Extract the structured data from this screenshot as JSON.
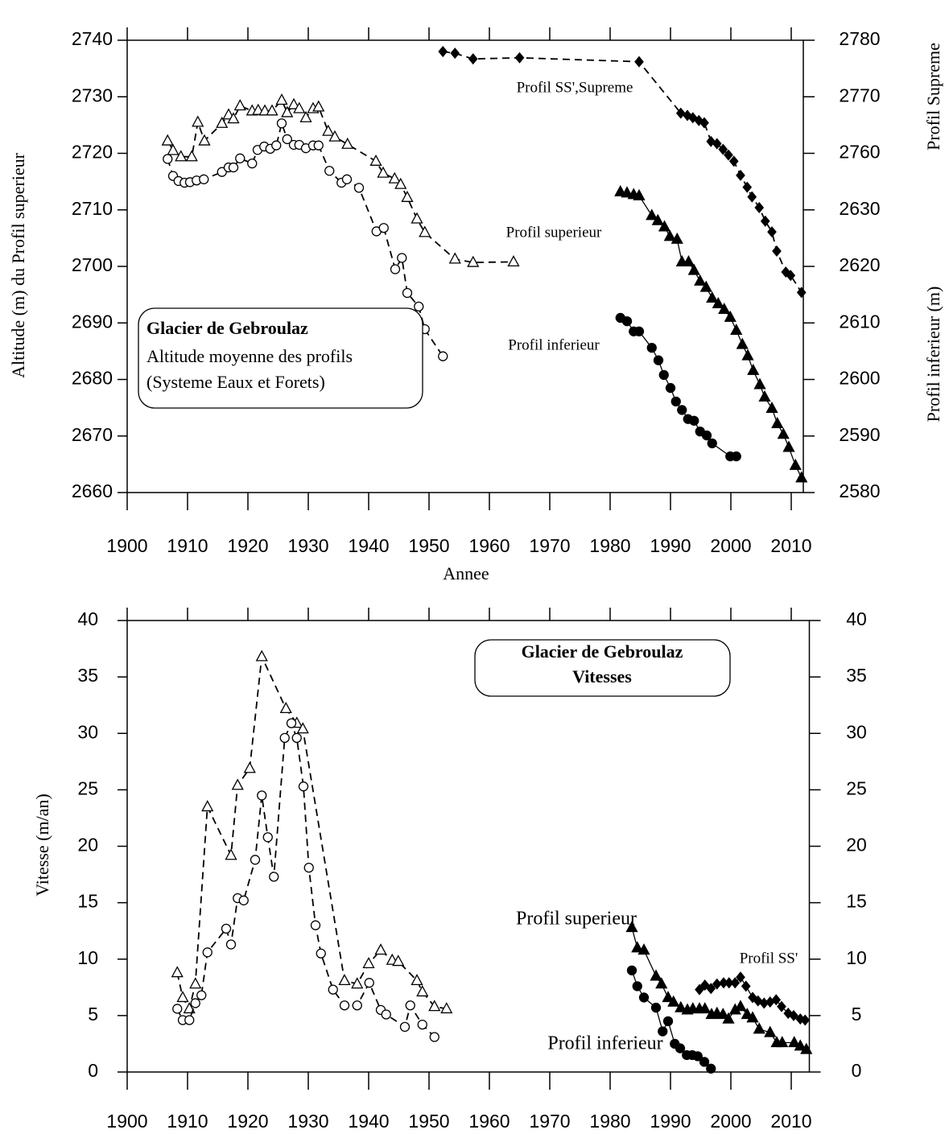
{
  "chart_data": [
    {
      "type": "line",
      "xlabel": "Annee",
      "ylabel": "Altitude (m) du Profil superieur",
      "y2label": "Profil Supreme",
      "y3label": "Profil inferieur (m)",
      "xlim": [
        1900,
        2012
      ],
      "xticks": [
        1900,
        1910,
        1920,
        1930,
        1940,
        1950,
        1960,
        1970,
        1980,
        1990,
        2000,
        2010
      ],
      "ylim": [
        2660,
        2740
      ],
      "yticks": [
        2660,
        2670,
        2680,
        2690,
        2700,
        2710,
        2720,
        2730,
        2740
      ],
      "y2lim": [
        2700,
        2780
      ],
      "y2ticks": [
        2760,
        2770,
        2780
      ],
      "y3lim": [
        2580,
        2660
      ],
      "y3ticks": [
        2580,
        2590,
        2600,
        2610,
        2620,
        2630
      ],
      "box": {
        "title": "Glacier de Gebroulaz",
        "lines": [
          "Altitude moyenne des profils",
          "(Systeme Eaux et Forets)"
        ]
      },
      "annotations": [
        "Profil SS',Supreme",
        "Profil superieur",
        "Profil inferieur"
      ],
      "series": [
        {
          "color": "#000000",
          "marker": "triangle-open",
          "dash": true,
          "x": [
            1906.7,
            1907.6,
            1908.9,
            1910.7,
            1911.7,
            1912.8,
            1915.7,
            1916.8,
            1917.6,
            1918.7,
            1920.7,
            1921.7,
            1922.8,
            1924,
            1925.6,
            1926.5,
            1927.6,
            1928.5,
            1929.6,
            1930.8,
            1931.7,
            1933.3,
            1934.4,
            1936.5,
            1941.2,
            1942.4,
            1944.3,
            1945.3,
            1946.4,
            1948,
            1949.3,
            1954.3,
            1957.3,
            1964
          ],
          "values": [
            2722.2,
            2720.5,
            2719.4,
            2719.4,
            2725.5,
            2722.2,
            2725.3,
            2726.8,
            2726.1,
            2728.4,
            2727.5,
            2727.6,
            2727.5,
            2727.5,
            2729.4,
            2727.2,
            2728.6,
            2727.9,
            2726.3,
            2727.9,
            2728.2,
            2723.9,
            2722.9,
            2721.6,
            2718.6,
            2716.5,
            2715.5,
            2714.5,
            2712.2,
            2708.4,
            2706,
            2701.3,
            2700.7,
            2700.8
          ]
        },
        {
          "color": "#000000",
          "marker": "circle-open",
          "dash": true,
          "x": [
            1906.7,
            1907.6,
            1908.5,
            1909.5,
            1910.4,
            1911.5,
            1912.7,
            1915.7,
            1916.8,
            1917.6,
            1918.7,
            1920.7,
            1921.6,
            1922.7,
            1923.7,
            1924.7,
            1925.6,
            1926.5,
            1927.6,
            1928.5,
            1929.6,
            1930.8,
            1931.7,
            1933.5,
            1935.5,
            1936.4,
            1938.4,
            1941.3,
            1942.5,
            1944.4,
            1945.5,
            1946.4,
            1948.3,
            1949.3,
            1952.3
          ],
          "values": [
            2719,
            2716,
            2715.1,
            2714.8,
            2714.9,
            2715.2,
            2715.4,
            2716.7,
            2717.5,
            2717.5,
            2719.1,
            2718.2,
            2720.6,
            2721.2,
            2720.8,
            2721.4,
            2725.3,
            2722.5,
            2721.5,
            2721.5,
            2720.9,
            2721.4,
            2721.4,
            2716.9,
            2714.8,
            2715.4,
            2713.9,
            2706.2,
            2706.8,
            2699.5,
            2701.5,
            2695.3,
            2692.9,
            2688.9,
            2684.1
          ]
        },
        {
          "color": "#000000",
          "marker": "diamond",
          "dash": true,
          "axis": "y2",
          "x": [
            1952.3,
            1954.3,
            1957.3,
            1965,
            1984.8,
            1991.7,
            1992.8,
            1993.7,
            1994.7,
            1995.6,
            1996.7,
            1997.7,
            1998.7,
            1999.6,
            2000.5,
            2001.6,
            2002.7,
            2003.5,
            2004.7,
            2005.7,
            2006.8,
            2007.6,
            2009.1,
            2009.9,
            2011.7
          ],
          "values": [
            2778,
            2777.7,
            2776.7,
            2776.9,
            2776.2,
            2767.1,
            2766.7,
            2766.3,
            2765.8,
            2765.4,
            2762.1,
            2761.7,
            2760.7,
            2759.7,
            2758.6,
            2756.1,
            2754,
            2752.3,
            2750.4,
            2748,
            2746.1,
            2742.7,
            2739,
            2738.4,
            2735.4
          ]
        },
        {
          "color": "#000000",
          "marker": "triangle",
          "dash": false,
          "x": [
            1981.7,
            1982.8,
            1983.9,
            1984.8,
            1986.9,
            1987.9,
            1989,
            1989.9,
            1991.1,
            1991.9,
            1993,
            1993.9,
            1994.9,
            1995.9,
            1996.9,
            1997.9,
            1998.9,
            1999.9,
            2000.9,
            2001.9,
            2002.8,
            2003.7,
            2004.8,
            2005.6,
            2006.8,
            2007.7,
            2008.7,
            2009.6,
            2010.7,
            2011.7
          ],
          "values": [
            2713.2,
            2713,
            2712.7,
            2712.5,
            2709,
            2708.1,
            2707,
            2705.3,
            2704.8,
            2700.8,
            2700.8,
            2699.3,
            2697.4,
            2696.3,
            2694.4,
            2693.4,
            2692.4,
            2691,
            2688.7,
            2686.2,
            2684.2,
            2681.6,
            2679.1,
            2676.9,
            2674.9,
            2672.2,
            2670.3,
            2668,
            2664.8,
            2662.6
          ]
        },
        {
          "color": "#000000",
          "marker": "circle",
          "dash": false,
          "axis": "y3",
          "x": [
            1981.7,
            1982.8,
            1983.9,
            1984.8,
            1986.9,
            1988,
            1988.9,
            1990,
            1990.9,
            1991.9,
            1992.9,
            1993.9,
            1994.9,
            1996,
            1996.9,
            1999.9,
            2000.9
          ],
          "values": [
            2610.9,
            2610.3,
            2608.5,
            2608.5,
            2605.6,
            2603.4,
            2600.8,
            2598.5,
            2596.1,
            2594.6,
            2593,
            2592.7,
            2590.8,
            2590.1,
            2588.7,
            2586.4,
            2586.4
          ]
        }
      ]
    },
    {
      "type": "line",
      "ylabel": "Vitesse (m/an)",
      "xlim": [
        1900,
        2013
      ],
      "xticks": [
        1900,
        1910,
        1920,
        1930,
        1940,
        1950,
        1960,
        1970,
        1980,
        1990,
        2000,
        2010
      ],
      "ylim": [
        0,
        40
      ],
      "yticks": [
        0,
        5,
        10,
        15,
        20,
        25,
        30,
        35,
        40
      ],
      "y2lim": [
        0,
        40
      ],
      "y2ticks": [
        0,
        5,
        10,
        15,
        20,
        25,
        30,
        35,
        40
      ],
      "box": {
        "lines": [
          "Glacier de Gebroulaz",
          "Vitesses"
        ],
        "bold": true
      },
      "annotations": [
        "Profil superieur",
        "Profil inferieur",
        "Profil SS'"
      ],
      "series": [
        {
          "color": "#000000",
          "marker": "triangle-open",
          "dash": true,
          "x": [
            1908.3,
            1909.2,
            1910.3,
            1911.3,
            1913.3,
            1917.2,
            1918.3,
            1920.3,
            1922.3,
            1926.3,
            1928.1,
            1929.1,
            1936,
            1938.1,
            1940,
            1942,
            1943.9,
            1944.9,
            1948,
            1948.9,
            1950.9,
            1952.9
          ],
          "values": [
            8.8,
            6.6,
            5.6,
            7.8,
            23.5,
            19.2,
            25.4,
            26.9,
            36.8,
            32.2,
            30.9,
            30.4,
            8.1,
            7.8,
            9.6,
            10.8,
            9.9,
            9.8,
            8.1,
            7.1,
            5.8,
            5.6
          ]
        },
        {
          "color": "#000000",
          "marker": "circle-open",
          "dash": true,
          "x": [
            1908.3,
            1909.2,
            1910.3,
            1911.3,
            1912.3,
            1913.3,
            1916.4,
            1917.2,
            1918.3,
            1919.3,
            1921.2,
            1922.3,
            1923.3,
            1924.3,
            1926.1,
            1927.2,
            1928.1,
            1929.2,
            1930.1,
            1931.2,
            1932.1,
            1934.1,
            1936,
            1938.1,
            1940.1,
            1942,
            1942.9,
            1946,
            1946.9,
            1948.9,
            1950.9
          ],
          "values": [
            5.6,
            4.6,
            4.6,
            6.1,
            6.8,
            10.6,
            12.7,
            11.3,
            15.4,
            15.2,
            18.8,
            24.5,
            20.8,
            17.3,
            29.6,
            30.9,
            29.6,
            25.3,
            18.1,
            13,
            10.5,
            7.3,
            5.9,
            5.9,
            7.9,
            5.5,
            5.1,
            4,
            5.9,
            4.2,
            3.1
          ]
        },
        {
          "color": "#000000",
          "marker": "triangle",
          "dash": false,
          "x": [
            1983.6,
            1984.5,
            1985.6,
            1987.6,
            1988.5,
            1989.6,
            1990.5,
            1991.7,
            1992.8,
            1993.7,
            1994.8,
            1995.7,
            1996.8,
            1997.7,
            1998.7,
            1999.6,
            2000.7,
            2001.6,
            2002.7,
            2003.6,
            2004.7,
            2006.5,
            2007.6,
            2008.5,
            2010.5,
            2011.5,
            2012.5
          ],
          "values": [
            12.8,
            11,
            10.8,
            8.5,
            7.8,
            6.6,
            6.2,
            5.7,
            5.5,
            5.6,
            5.6,
            5.6,
            5.1,
            5.2,
            5.1,
            4.7,
            5.5,
            5.8,
            5.1,
            4.8,
            3.8,
            3.5,
            2.6,
            2.6,
            2.6,
            2.3,
            2
          ]
        },
        {
          "color": "#000000",
          "marker": "circle",
          "dash": false,
          "x": [
            1983.6,
            1984.5,
            1985.6,
            1987.6,
            1988.7,
            1989.6,
            1990.7,
            1991.6,
            1992.7,
            1993.6,
            1994.5,
            1995.6,
            1996.7
          ],
          "values": [
            9,
            7.6,
            6.6,
            5.7,
            3.6,
            4.5,
            2.5,
            2.1,
            1.5,
            1.5,
            1.4,
            0.9,
            0.3
          ]
        },
        {
          "color": "#000000",
          "marker": "diamond",
          "dash": false,
          "x": [
            1994.8,
            1995.7,
            1996.7,
            1997.7,
            1998.8,
            1999.7,
            2000.7,
            2001.6,
            2002.5,
            2003.6,
            2004.5,
            2005.5,
            2006.5,
            2007.5,
            2008.4,
            2009.5,
            2010.4,
            2011.5,
            2012.3
          ],
          "values": [
            7.3,
            7.7,
            7.4,
            7.8,
            7.9,
            7.9,
            7.9,
            8.4,
            7.6,
            6.6,
            6.3,
            6.1,
            6.2,
            6.4,
            5.8,
            5.2,
            5,
            4.7,
            4.6
          ]
        }
      ]
    }
  ]
}
